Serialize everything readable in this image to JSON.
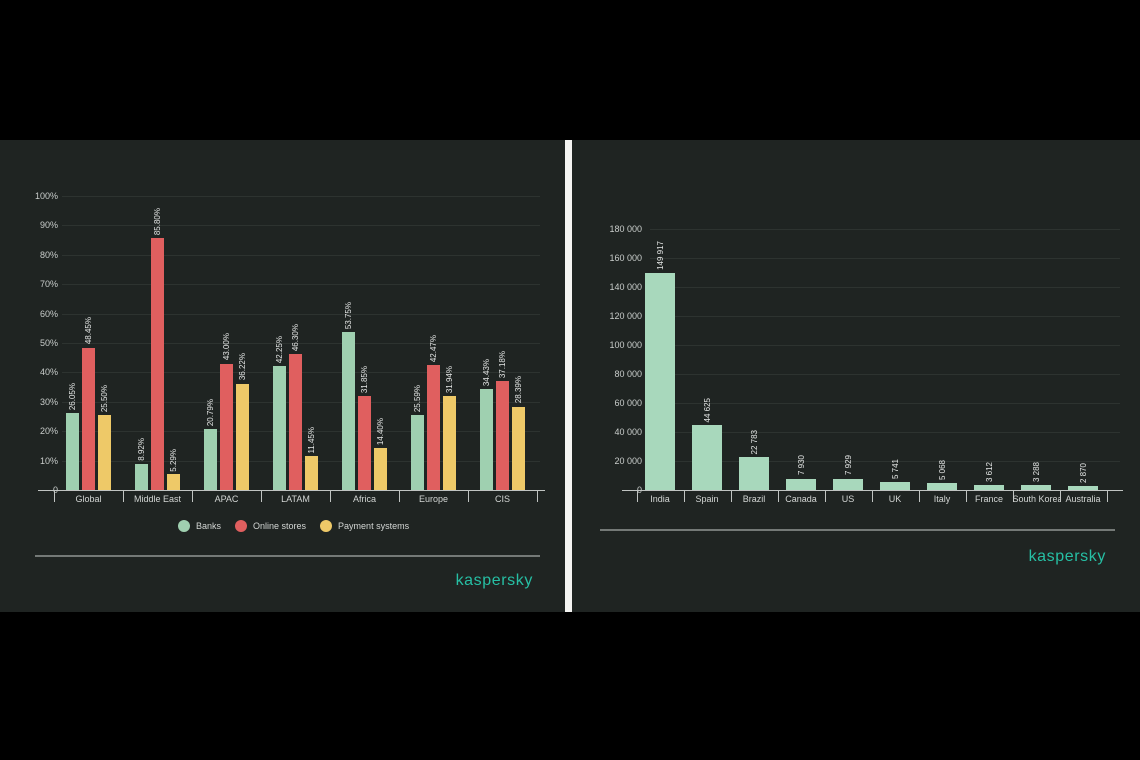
{
  "brand": {
    "logo_text": "kaspersky",
    "logo_color": "#26BFA4"
  },
  "colors": {
    "background": "#000000",
    "panel_background": "#1F2422",
    "divider": "#F4F4F2",
    "gridline": "#2D3330",
    "axis_text": "#C9CDCB",
    "value_text": "#E4E6E5"
  },
  "chart_data": [
    {
      "type": "bar",
      "title": "",
      "categories": [
        "Global",
        "Middle East",
        "APAC",
        "LATAM",
        "Africa",
        "Europe",
        "CIS"
      ],
      "series": [
        {
          "name": "Banks",
          "color": "#9FD0B0",
          "values": [
            26.05,
            8.92,
            20.79,
            42.25,
            53.75,
            25.59,
            34.43
          ],
          "labels": [
            "26.05%",
            "8.92%",
            "20.79%",
            "42.25%",
            "53.75%",
            "25.59%",
            "34.43%"
          ]
        },
        {
          "name": "Online stores",
          "color": "#E05F5F",
          "values": [
            48.45,
            85.8,
            43.0,
            46.3,
            31.85,
            42.47,
            37.18
          ],
          "labels": [
            "48.45%",
            "85.80%",
            "43.00%",
            "46.30%",
            "31.85%",
            "42.47%",
            "37.18%"
          ]
        },
        {
          "name": "Payment systems",
          "color": "#EEC968",
          "values": [
            25.5,
            5.29,
            36.22,
            11.45,
            14.4,
            31.94,
            28.39
          ],
          "labels": [
            "25.50%",
            "5.29%",
            "36.22%",
            "11.45%",
            "14.40%",
            "31.94%",
            "28.39%"
          ]
        }
      ],
      "xlabel": "",
      "ylabel": "",
      "ylim": [
        0,
        100
      ],
      "y_tick_labels": [
        "0",
        "10%",
        "20%",
        "30%",
        "40%",
        "50%",
        "60%",
        "70%",
        "80%",
        "90%",
        "100%"
      ],
      "grid": true,
      "legend_position": "bottom"
    },
    {
      "type": "bar",
      "title": "",
      "categories": [
        "India",
        "Spain",
        "Brazil",
        "Canada",
        "US",
        "UK",
        "Italy",
        "France",
        "South Korea",
        "Australia"
      ],
      "values": [
        149917,
        44625,
        22783,
        7930,
        7929,
        5741,
        5068,
        3612,
        3288,
        2870
      ],
      "labels": [
        "149 917",
        "44 625",
        "22 783",
        "7 930",
        "7 929",
        "5 741",
        "5 068",
        "3 612",
        "3 288",
        "2 870"
      ],
      "bar_color": "#A8D8BC",
      "xlabel": "",
      "ylabel": "",
      "ylim": [
        0,
        180000
      ],
      "y_tick_labels": [
        "0",
        "20 000",
        "40 000",
        "60 000",
        "80 000",
        "100 000",
        "120 000",
        "140 000",
        "160 000",
        "180 000"
      ],
      "grid": true,
      "legend_position": "none"
    }
  ]
}
